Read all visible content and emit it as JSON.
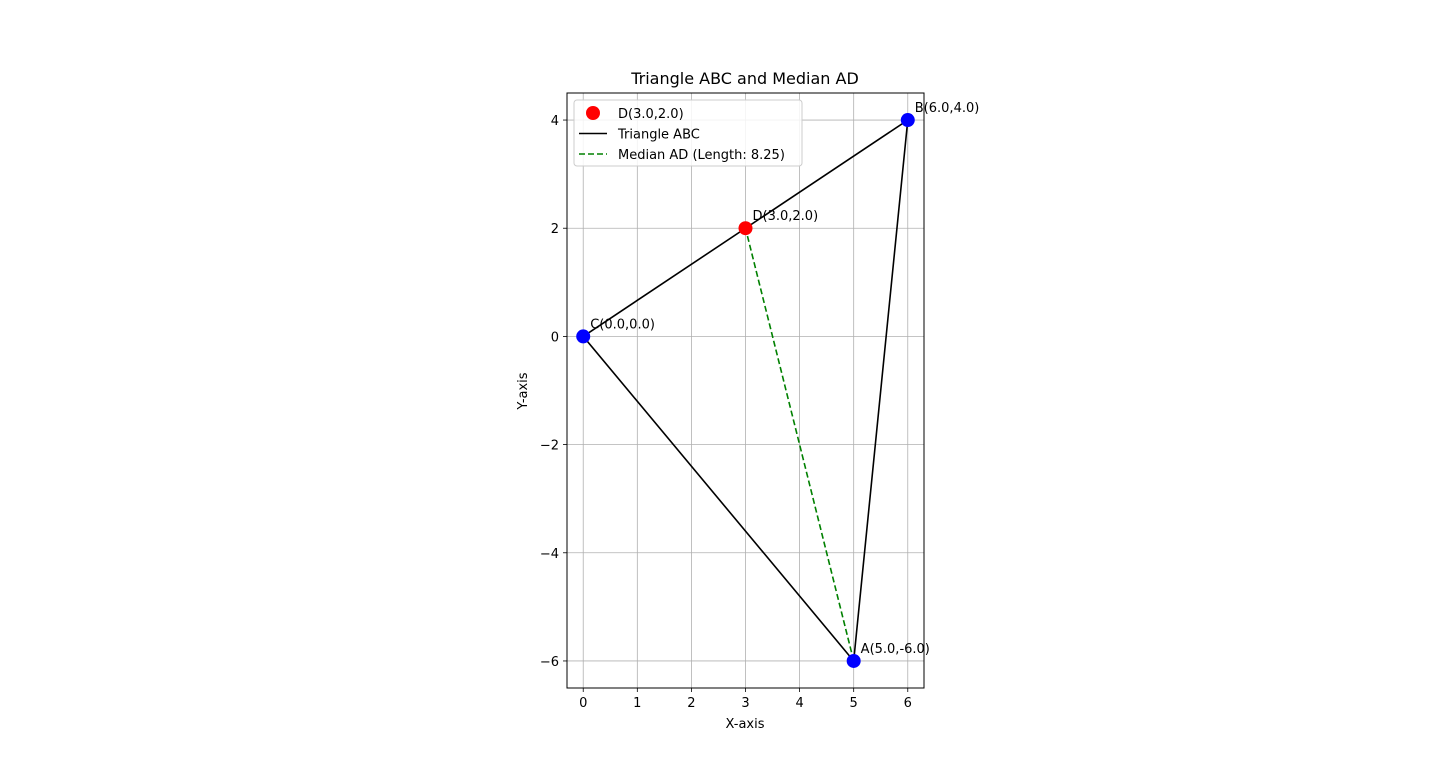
{
  "chart_data": {
    "type": "line",
    "title": "Triangle ABC and Median AD",
    "xlabel": "X-axis",
    "ylabel": "Y-axis",
    "xlim": [
      -0.3,
      6.3
    ],
    "ylim": [
      -6.5,
      4.5
    ],
    "xticks": [
      0,
      1,
      2,
      3,
      4,
      5,
      6
    ],
    "yticks": [
      -6,
      -4,
      -2,
      0,
      2,
      4
    ],
    "xtick_labels": [
      "0",
      "1",
      "2",
      "3",
      "4",
      "5",
      "6"
    ],
    "ytick_labels": [
      "−6",
      "−4",
      "−2",
      "0",
      "2",
      "4"
    ],
    "grid": true,
    "legend_position": "top-left",
    "points": [
      {
        "id": "A",
        "x": 5.0,
        "y": -6.0,
        "label": "A(5.0,-6.0)",
        "color": "#0000ff"
      },
      {
        "id": "B",
        "x": 6.0,
        "y": 4.0,
        "label": "B(6.0,4.0)",
        "color": "#0000ff"
      },
      {
        "id": "C",
        "x": 0.0,
        "y": 0.0,
        "label": "C(0.0,0.0)",
        "color": "#0000ff"
      },
      {
        "id": "D",
        "x": 3.0,
        "y": 2.0,
        "label": "D(3.0,2.0)",
        "color": "#ff0000"
      }
    ],
    "series": [
      {
        "name": "Triangle ABC",
        "style": "solid",
        "color": "#000000",
        "x": [
          5.0,
          6.0,
          0.0,
          5.0
        ],
        "y": [
          -6.0,
          4.0,
          0.0,
          -6.0
        ]
      },
      {
        "name": "Median AD (Length: 8.25)",
        "style": "dashed",
        "color": "#008000",
        "x": [
          5.0,
          3.0
        ],
        "y": [
          -6.0,
          2.0
        ]
      }
    ],
    "legend": [
      {
        "label": "D(3.0,2.0)",
        "kind": "marker",
        "color": "#ff0000"
      },
      {
        "label": "Triangle ABC",
        "kind": "line",
        "color": "#000000"
      },
      {
        "label": "Median AD (Length: 8.25)",
        "kind": "dashed",
        "color": "#008000"
      }
    ]
  }
}
